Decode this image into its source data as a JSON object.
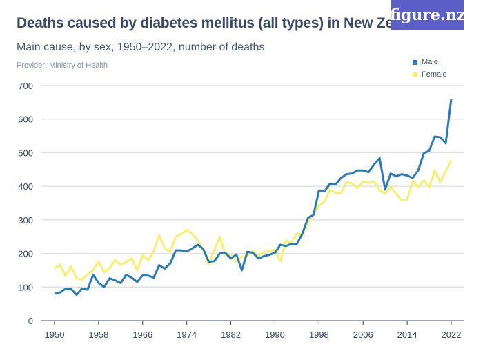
{
  "title": "Deaths caused by diabetes mellitus (all types) in New Zealand",
  "subtitle": "Main cause, by sex, 1950–2022, number of deaths",
  "provider": "Provider: Ministry of Health",
  "logo": "figure.nz",
  "chart_data": {
    "type": "line",
    "title": "Deaths caused by diabetes mellitus (all types) in New Zealand",
    "subtitle": "Main cause, by sex, 1950–2022, number of deaths",
    "xlabel": "",
    "ylabel": "",
    "xlim": [
      1950,
      2022
    ],
    "ylim": [
      0,
      700
    ],
    "x_ticks": [
      "1950",
      "1958",
      "1966",
      "1974",
      "1982",
      "1990",
      "1998",
      "2006",
      "2014",
      "2022"
    ],
    "y_ticks": [
      "0",
      "100",
      "200",
      "300",
      "400",
      "500",
      "600",
      "700"
    ],
    "grid": true,
    "legend_position": "top-right",
    "x": [
      1950,
      1951,
      1952,
      1953,
      1954,
      1955,
      1956,
      1957,
      1958,
      1959,
      1960,
      1961,
      1962,
      1963,
      1964,
      1965,
      1966,
      1967,
      1968,
      1969,
      1970,
      1971,
      1972,
      1973,
      1974,
      1975,
      1976,
      1977,
      1978,
      1979,
      1980,
      1981,
      1982,
      1983,
      1984,
      1985,
      1986,
      1987,
      1988,
      1989,
      1990,
      1991,
      1992,
      1993,
      1994,
      1995,
      1996,
      1997,
      1998,
      1999,
      2000,
      2001,
      2002,
      2003,
      2004,
      2005,
      2006,
      2007,
      2008,
      2009,
      2010,
      2011,
      2012,
      2013,
      2014,
      2015,
      2016,
      2017,
      2018,
      2019,
      2020,
      2021,
      2022
    ],
    "series": [
      {
        "name": "Male",
        "color": "#2a7ab8",
        "values": [
          80,
          84,
          95,
          94,
          77,
          96,
          92,
          137,
          112,
          100,
          126,
          120,
          112,
          136,
          128,
          115,
          135,
          134,
          128,
          165,
          155,
          170,
          209,
          209,
          206,
          215,
          226,
          213,
          175,
          177,
          200,
          202,
          185,
          197,
          150,
          205,
          202,
          185,
          192,
          196,
          202,
          226,
          222,
          229,
          229,
          260,
          306,
          315,
          388,
          385,
          408,
          405,
          425,
          436,
          438,
          447,
          447,
          442,
          465,
          484,
          390,
          438,
          430,
          436,
          432,
          425,
          447,
          498,
          506,
          548,
          546,
          528,
          660
        ]
      },
      {
        "name": "Female",
        "color": "#f7ef6e",
        "values": [
          155,
          167,
          133,
          161,
          126,
          122,
          138,
          150,
          177,
          144,
          156,
          181,
          166,
          175,
          186,
          150,
          195,
          180,
          208,
          254,
          215,
          205,
          250,
          258,
          270,
          258,
          240,
          210,
          167,
          210,
          250,
          194,
          196,
          175,
          190,
          194,
          208,
          193,
          205,
          208,
          210,
          177,
          238,
          232,
          260,
          255,
          290,
          318,
          343,
          355,
          390,
          380,
          380,
          412,
          408,
          395,
          415,
          410,
          415,
          388,
          378,
          398,
          378,
          358,
          360,
          415,
          398,
          418,
          397,
          447,
          412,
          445,
          477
        ]
      }
    ]
  }
}
